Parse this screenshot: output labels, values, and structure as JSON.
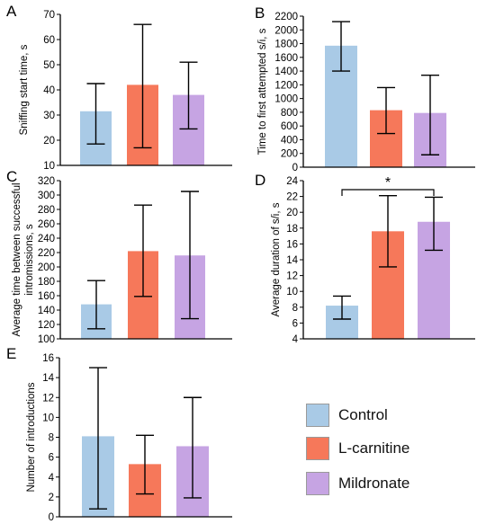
{
  "colors": {
    "control": "#a9cae6",
    "lcarnitine": "#f6785a",
    "mildronate": "#c6a4e3",
    "axis": "#000000"
  },
  "legend": [
    {
      "label": "Control",
      "color_key": "control"
    },
    {
      "label": "L-carnitine",
      "color_key": "lcarnitine"
    },
    {
      "label": "Mildronate",
      "color_key": "mildronate"
    }
  ],
  "chart_data": [
    {
      "panel": "A",
      "type": "bar",
      "categories": [
        "Control",
        "L-carnitine",
        "Mildronate"
      ],
      "values": [
        31.5,
        42,
        38
      ],
      "errors": [
        [
          18.5,
          42.5
        ],
        [
          17,
          66
        ],
        [
          24.5,
          51
        ]
      ],
      "ylabel": "Sniffing start time, s",
      "ylim": [
        10,
        70
      ],
      "yticks": [
        10,
        20,
        30,
        40,
        50,
        60,
        70
      ],
      "significance": null
    },
    {
      "panel": "B",
      "type": "bar",
      "categories": [
        "Control",
        "L-carnitine",
        "Mildronate"
      ],
      "values": [
        1770,
        830,
        790
      ],
      "errors": [
        [
          1400,
          2120
        ],
        [
          490,
          1160
        ],
        [
          180,
          1340
        ]
      ],
      "ylabel": "Time to first attempted s/i, s",
      "ylim": [
        0,
        2200
      ],
      "yticks": [
        0,
        200,
        400,
        600,
        800,
        1000,
        1200,
        1400,
        1600,
        1800,
        2000,
        2200
      ],
      "significance": null
    },
    {
      "panel": "C",
      "type": "bar",
      "categories": [
        "Control",
        "L-carnitine",
        "Mildronate"
      ],
      "values": [
        148,
        222,
        216
      ],
      "errors": [
        [
          114,
          181
        ],
        [
          159,
          286
        ],
        [
          128,
          305
        ]
      ],
      "ylabel": "Average time between successful intromissions, s",
      "ylim": [
        100,
        320
      ],
      "yticks": [
        100,
        120,
        140,
        160,
        180,
        200,
        220,
        240,
        260,
        280,
        300,
        320
      ],
      "significance": null
    },
    {
      "panel": "D",
      "type": "bar",
      "categories": [
        "Control",
        "L-carnitine",
        "Mildronate"
      ],
      "values": [
        8.2,
        17.6,
        18.8
      ],
      "errors": [
        [
          6.5,
          9.4
        ],
        [
          13.1,
          22.1
        ],
        [
          15.2,
          21.9
        ]
      ],
      "ylabel": "Average duration of s/i, s",
      "ylim": [
        4,
        24
      ],
      "yticks": [
        4,
        6,
        8,
        10,
        12,
        14,
        16,
        18,
        20,
        22,
        24
      ],
      "significance": {
        "from": 0,
        "to": 2,
        "label": "*"
      }
    },
    {
      "panel": "E",
      "type": "bar",
      "categories": [
        "Control",
        "L-carnitine",
        "Mildronate"
      ],
      "values": [
        8.1,
        5.3,
        7.1
      ],
      "errors": [
        [
          0.8,
          15
        ],
        [
          2.3,
          8.2
        ],
        [
          1.9,
          12
        ]
      ],
      "ylabel": "Number of introductions",
      "ylim": [
        0,
        16
      ],
      "yticks": [
        0,
        2,
        4,
        6,
        8,
        10,
        12,
        14,
        16
      ],
      "significance": null
    }
  ]
}
